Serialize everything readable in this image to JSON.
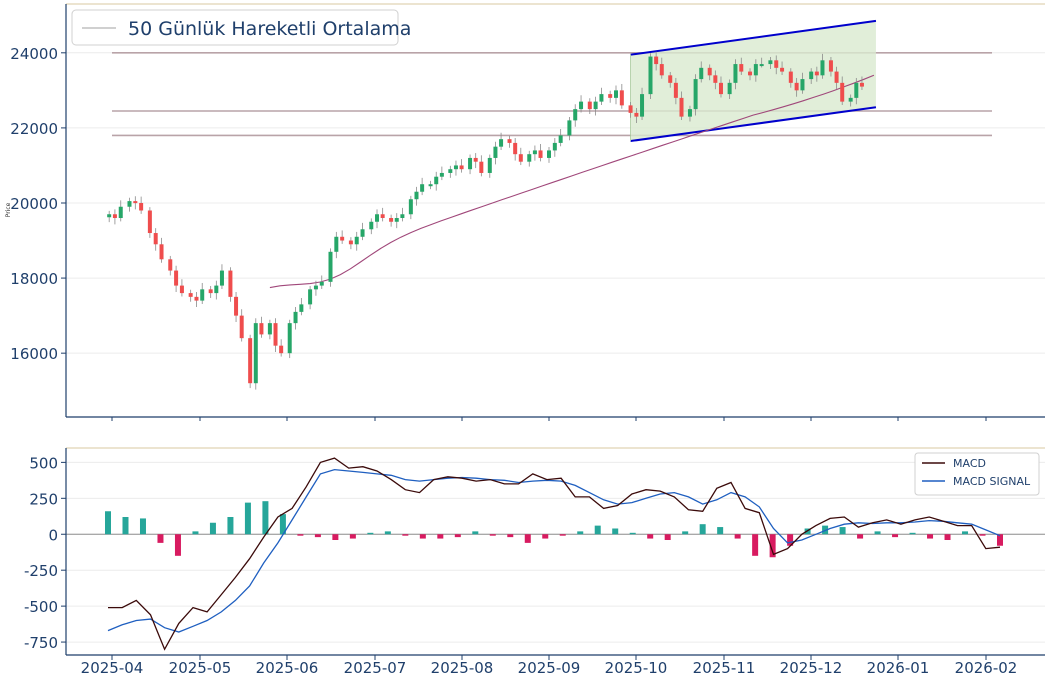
{
  "chart_data": [
    {
      "type": "candlestick",
      "panel": "price",
      "ylabel": "Price",
      "ylim": [
        14300,
        25300
      ],
      "yticks": [
        16000,
        18000,
        20000,
        22000,
        24000
      ],
      "grid": true,
      "legend": {
        "location": "top-left",
        "entries": [
          "50 Günlük Hareketli Ortalama"
        ]
      },
      "colors": {
        "up": "#26a668",
        "down": "#ef4d4d",
        "ma": "#a0477a",
        "channel": "#0000cc",
        "channel_fill": "#d9ead0",
        "levels": "#b9a3a8",
        "axis": "#1f3f6b"
      },
      "candles_approx_close": [
        [
          "2025-03-31",
          19700
        ],
        [
          "2025-04-02",
          19600
        ],
        [
          "2025-04-04",
          19900
        ],
        [
          "2025-04-07",
          20050
        ],
        [
          "2025-04-09",
          20000
        ],
        [
          "2025-04-11",
          19800
        ],
        [
          "2025-04-14",
          19200
        ],
        [
          "2025-04-16",
          18900
        ],
        [
          "2025-04-18",
          18500
        ],
        [
          "2025-04-21",
          18200
        ],
        [
          "2025-04-23",
          17800
        ],
        [
          "2025-04-25",
          17600
        ],
        [
          "2025-04-28",
          17500
        ],
        [
          "2025-04-30",
          17400
        ],
        [
          "2025-05-02",
          17700
        ],
        [
          "2025-05-05",
          17600
        ],
        [
          "2025-05-07",
          17800
        ],
        [
          "2025-05-09",
          18200
        ],
        [
          "2025-05-12",
          17500
        ],
        [
          "2025-05-14",
          17000
        ],
        [
          "2025-05-16",
          16400
        ],
        [
          "2025-05-19",
          15200
        ],
        [
          "2025-05-21",
          16800
        ],
        [
          "2025-05-23",
          16500
        ],
        [
          "2025-05-26",
          16800
        ],
        [
          "2025-05-28",
          16200
        ],
        [
          "2025-05-30",
          16000
        ],
        [
          "2025-06-02",
          16800
        ],
        [
          "2025-06-04",
          17100
        ],
        [
          "2025-06-06",
          17300
        ],
        [
          "2025-06-09",
          17700
        ],
        [
          "2025-06-11",
          17800
        ],
        [
          "2025-06-13",
          17900
        ],
        [
          "2025-06-16",
          18700
        ],
        [
          "2025-06-18",
          19100
        ],
        [
          "2025-06-20",
          19000
        ],
        [
          "2025-06-23",
          18900
        ],
        [
          "2025-06-25",
          19100
        ],
        [
          "2025-06-27",
          19300
        ],
        [
          "2025-06-30",
          19500
        ],
        [
          "2025-07-02",
          19700
        ],
        [
          "2025-07-04",
          19600
        ],
        [
          "2025-07-07",
          19500
        ],
        [
          "2025-07-09",
          19600
        ],
        [
          "2025-07-11",
          19700
        ],
        [
          "2025-07-14",
          20100
        ],
        [
          "2025-07-16",
          20300
        ],
        [
          "2025-07-18",
          20500
        ],
        [
          "2025-07-21",
          20500
        ],
        [
          "2025-07-23",
          20700
        ],
        [
          "2025-07-25",
          20800
        ],
        [
          "2025-07-28",
          20900
        ],
        [
          "2025-07-30",
          21000
        ],
        [
          "2025-08-01",
          20900
        ],
        [
          "2025-08-04",
          21200
        ],
        [
          "2025-08-06",
          21100
        ],
        [
          "2025-08-08",
          20800
        ],
        [
          "2025-08-11",
          21200
        ],
        [
          "2025-08-13",
          21500
        ],
        [
          "2025-08-15",
          21700
        ],
        [
          "2025-08-18",
          21600
        ],
        [
          "2025-08-20",
          21300
        ],
        [
          "2025-08-22",
          21100
        ],
        [
          "2025-08-25",
          21300
        ],
        [
          "2025-08-27",
          21400
        ],
        [
          "2025-08-29",
          21200
        ],
        [
          "2025-09-01",
          21400
        ],
        [
          "2025-09-03",
          21600
        ],
        [
          "2025-09-05",
          21800
        ],
        [
          "2025-09-08",
          22200
        ],
        [
          "2025-09-10",
          22500
        ],
        [
          "2025-09-12",
          22700
        ],
        [
          "2025-09-15",
          22500
        ],
        [
          "2025-09-17",
          22700
        ],
        [
          "2025-09-19",
          22900
        ],
        [
          "2025-09-22",
          22800
        ],
        [
          "2025-09-24",
          23000
        ],
        [
          "2025-09-26",
          22600
        ],
        [
          "2025-09-29",
          22400
        ],
        [
          "2025-10-01",
          22300
        ],
        [
          "2025-10-03",
          22900
        ],
        [
          "2025-10-06",
          23900
        ],
        [
          "2025-10-08",
          23700
        ],
        [
          "2025-10-10",
          23400
        ],
        [
          "2025-10-13",
          23200
        ],
        [
          "2025-10-15",
          22800
        ],
        [
          "2025-10-17",
          22300
        ],
        [
          "2025-10-20",
          22500
        ],
        [
          "2025-10-22",
          23300
        ],
        [
          "2025-10-24",
          23600
        ],
        [
          "2025-10-27",
          23400
        ],
        [
          "2025-10-29",
          23200
        ],
        [
          "2025-10-31",
          22900
        ],
        [
          "2025-11-03",
          23200
        ],
        [
          "2025-11-05",
          23700
        ],
        [
          "2025-11-07",
          23500
        ],
        [
          "2025-11-10",
          23400
        ],
        [
          "2025-11-12",
          23700
        ],
        [
          "2025-11-14",
          23700
        ],
        [
          "2025-11-17",
          23800
        ],
        [
          "2025-11-19",
          23600
        ],
        [
          "2025-11-21",
          23500
        ],
        [
          "2025-11-24",
          23200
        ],
        [
          "2025-11-26",
          23000
        ],
        [
          "2025-11-28",
          23300
        ],
        [
          "2025-12-01",
          23500
        ],
        [
          "2025-12-03",
          23400
        ],
        [
          "2025-12-05",
          23800
        ],
        [
          "2025-12-08",
          23500
        ],
        [
          "2025-12-10",
          23200
        ],
        [
          "2025-12-12",
          22700
        ],
        [
          "2025-12-15",
          22800
        ],
        [
          "2025-12-17",
          23200
        ],
        [
          "2025-12-19",
          23100
        ]
      ],
      "moving_average_50": {
        "x_start": "2025-05-26",
        "y_start": 17850,
        "x_end": "2025-12-19",
        "y_end": 23400
      },
      "horizontal_levels": [
        24000,
        22450,
        21800
      ],
      "channel": {
        "x_start": "2025-09-29",
        "x_end": "2025-12-19",
        "upper": [
          23950,
          24850
        ],
        "lower": [
          21650,
          22550
        ]
      },
      "title": "",
      "xlabel": ""
    },
    {
      "type": "line+bar",
      "panel": "macd",
      "ylim": [
        -840,
        600
      ],
      "yticks": [
        -750,
        -500,
        -250,
        0,
        250,
        500
      ],
      "grid": true,
      "legend": {
        "location": "top-right",
        "entries": [
          "MACD",
          "MACD SIGNAL"
        ]
      },
      "colors": {
        "macd": "#3b0a0a",
        "signal": "#1f5fc0",
        "hist_up": "#26a69a",
        "hist_down": "#d81b60",
        "zero": "#888888"
      },
      "x_axis_ticks": [
        "2025-04",
        "2025-05",
        "2025-06",
        "2025-07",
        "2025-08",
        "2025-09",
        "2025-10",
        "2025-11",
        "2025-12",
        "2026-01",
        "2026-02"
      ],
      "series": [
        {
          "name": "MACD",
          "values_approx": [
            -510,
            -510,
            -460,
            -560,
            -800,
            -620,
            -510,
            -540,
            -420,
            -300,
            -170,
            -20,
            120,
            180,
            330,
            500,
            530,
            460,
            470,
            440,
            380,
            310,
            290,
            380,
            400,
            390,
            370,
            380,
            350,
            350,
            420,
            380,
            390,
            260,
            260,
            180,
            200,
            280,
            310,
            300,
            260,
            170,
            160,
            320,
            360,
            180,
            150,
            -140,
            -100,
            0,
            60,
            110,
            120,
            50,
            80,
            100,
            70,
            100,
            120,
            90,
            60,
            60,
            -100,
            -90
          ]
        },
        {
          "name": "MACD SIGNAL",
          "values_approx": [
            -670,
            -630,
            -600,
            -590,
            -650,
            -680,
            -640,
            -600,
            -540,
            -460,
            -360,
            -200,
            -60,
            100,
            260,
            420,
            450,
            440,
            430,
            420,
            410,
            380,
            370,
            380,
            390,
            395,
            390,
            380,
            375,
            360,
            370,
            375,
            370,
            340,
            290,
            240,
            210,
            220,
            250,
            280,
            290,
            260,
            210,
            240,
            290,
            260,
            190,
            40,
            -60,
            -40,
            0,
            40,
            70,
            80,
            75,
            80,
            80,
            85,
            95,
            90,
            80,
            70,
            30,
            -10
          ]
        },
        {
          "name": "histogram",
          "values_approx": [
            160,
            120,
            110,
            -60,
            -150,
            20,
            80,
            120,
            220,
            230,
            140,
            -10,
            -20,
            -40,
            -30,
            10,
            20,
            -10,
            -30,
            -30,
            -20,
            20,
            -10,
            -20,
            -60,
            -30,
            -10,
            20,
            60,
            40,
            10,
            -30,
            -40,
            20,
            70,
            50,
            -30,
            -150,
            -160,
            -80,
            40,
            60,
            50,
            -30,
            20,
            -20,
            10,
            -30,
            -40,
            20,
            -10,
            -80
          ]
        }
      ],
      "title": "",
      "xlabel": "",
      "ylabel": ""
    }
  ]
}
